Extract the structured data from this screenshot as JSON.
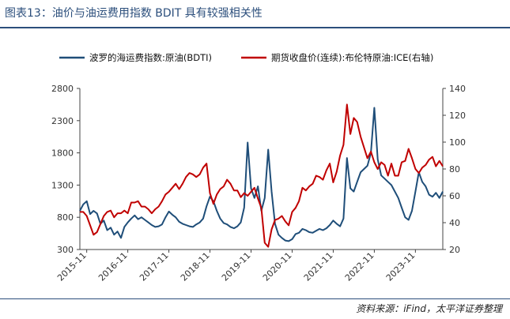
{
  "header": {
    "title": "图表13：油价与油运费用指数 BDIT 具有较强相关性"
  },
  "footer": {
    "source": "资料来源：iFind，太平洋证券整理"
  },
  "chart_data": {
    "type": "line",
    "title": "",
    "legend_position": "top",
    "grid": false,
    "x_ticks": [
      "2015-11",
      "2016-11",
      "2017-11",
      "2018-11",
      "2019-11",
      "2020-11",
      "2021-11",
      "2022-11",
      "2023-11"
    ],
    "y_left": {
      "ticks": [
        "300",
        "800",
        "1300",
        "1800",
        "2300",
        "2800"
      ],
      "range": [
        300,
        2800
      ]
    },
    "y_right": {
      "ticks": [
        "20",
        "40",
        "60",
        "80",
        "100",
        "120",
        "140"
      ],
      "range": [
        20,
        140
      ]
    },
    "series": [
      {
        "name": "波罗的海运费指数:原油(BDTI)",
        "axis": "left",
        "color": "#1f4e79",
        "points": [
          [
            "2015-09",
            900
          ],
          [
            "2015-10",
            1000
          ],
          [
            "2015-11",
            1050
          ],
          [
            "2015-12",
            850
          ],
          [
            "2016-01",
            900
          ],
          [
            "2016-02",
            860
          ],
          [
            "2016-03",
            700
          ],
          [
            "2016-04",
            750
          ],
          [
            "2016-05",
            600
          ],
          [
            "2016-06",
            640
          ],
          [
            "2016-07",
            530
          ],
          [
            "2016-08",
            580
          ],
          [
            "2016-09",
            480
          ],
          [
            "2016-10",
            650
          ],
          [
            "2016-11",
            720
          ],
          [
            "2016-12",
            780
          ],
          [
            "2017-01",
            830
          ],
          [
            "2017-02",
            770
          ],
          [
            "2017-03",
            800
          ],
          [
            "2017-04",
            760
          ],
          [
            "2017-05",
            720
          ],
          [
            "2017-06",
            680
          ],
          [
            "2017-07",
            650
          ],
          [
            "2017-08",
            660
          ],
          [
            "2017-09",
            690
          ],
          [
            "2017-10",
            800
          ],
          [
            "2017-11",
            890
          ],
          [
            "2017-12",
            840
          ],
          [
            "2018-01",
            800
          ],
          [
            "2018-02",
            730
          ],
          [
            "2018-03",
            700
          ],
          [
            "2018-04",
            680
          ],
          [
            "2018-05",
            660
          ],
          [
            "2018-06",
            650
          ],
          [
            "2018-07",
            690
          ],
          [
            "2018-08",
            720
          ],
          [
            "2018-09",
            780
          ],
          [
            "2018-10",
            970
          ],
          [
            "2018-11",
            1120
          ],
          [
            "2018-12",
            1050
          ],
          [
            "2019-01",
            900
          ],
          [
            "2019-02",
            780
          ],
          [
            "2019-03",
            710
          ],
          [
            "2019-04",
            690
          ],
          [
            "2019-05",
            650
          ],
          [
            "2019-06",
            630
          ],
          [
            "2019-07",
            660
          ],
          [
            "2019-08",
            720
          ],
          [
            "2019-09",
            950
          ],
          [
            "2019-10",
            1960
          ],
          [
            "2019-11",
            1250
          ],
          [
            "2019-12",
            1100
          ],
          [
            "2020-01",
            1280
          ],
          [
            "2020-02",
            900
          ],
          [
            "2020-03",
            1100
          ],
          [
            "2020-04",
            1850
          ],
          [
            "2020-05",
            1200
          ],
          [
            "2020-06",
            700
          ],
          [
            "2020-07",
            530
          ],
          [
            "2020-08",
            480
          ],
          [
            "2020-09",
            440
          ],
          [
            "2020-10",
            430
          ],
          [
            "2020-11",
            460
          ],
          [
            "2020-12",
            540
          ],
          [
            "2021-01",
            560
          ],
          [
            "2021-02",
            620
          ],
          [
            "2021-03",
            600
          ],
          [
            "2021-04",
            570
          ],
          [
            "2021-05",
            560
          ],
          [
            "2021-06",
            590
          ],
          [
            "2021-07",
            620
          ],
          [
            "2021-08",
            600
          ],
          [
            "2021-09",
            630
          ],
          [
            "2021-10",
            680
          ],
          [
            "2021-11",
            750
          ],
          [
            "2021-12",
            700
          ],
          [
            "2022-01",
            660
          ],
          [
            "2022-02",
            780
          ],
          [
            "2022-03",
            1720
          ],
          [
            "2022-04",
            1250
          ],
          [
            "2022-05",
            1200
          ],
          [
            "2022-06",
            1350
          ],
          [
            "2022-07",
            1500
          ],
          [
            "2022-08",
            1550
          ],
          [
            "2022-09",
            1600
          ],
          [
            "2022-10",
            1800
          ],
          [
            "2022-11",
            2500
          ],
          [
            "2022-12",
            1700
          ],
          [
            "2023-01",
            1450
          ],
          [
            "2023-02",
            1400
          ],
          [
            "2023-03",
            1350
          ],
          [
            "2023-04",
            1300
          ],
          [
            "2023-05",
            1200
          ],
          [
            "2023-06",
            1100
          ],
          [
            "2023-07",
            950
          ],
          [
            "2023-08",
            800
          ],
          [
            "2023-09",
            760
          ],
          [
            "2023-10",
            900
          ],
          [
            "2023-11",
            1200
          ],
          [
            "2023-12",
            1500
          ],
          [
            "2024-01",
            1350
          ],
          [
            "2024-02",
            1280
          ],
          [
            "2024-03",
            1150
          ],
          [
            "2024-04",
            1120
          ],
          [
            "2024-05",
            1180
          ],
          [
            "2024-06",
            1100
          ],
          [
            "2024-07",
            1200
          ]
        ]
      },
      {
        "name": "期货收盘价(连续):布伦特原油:ICE(右轴)",
        "axis": "right",
        "color": "#c00000",
        "points": [
          [
            "2015-09",
            48
          ],
          [
            "2015-10",
            48
          ],
          [
            "2015-11",
            45
          ],
          [
            "2015-12",
            38
          ],
          [
            "2016-01",
            31
          ],
          [
            "2016-02",
            33
          ],
          [
            "2016-03",
            39
          ],
          [
            "2016-04",
            45
          ],
          [
            "2016-05",
            48
          ],
          [
            "2016-06",
            49
          ],
          [
            "2016-07",
            44
          ],
          [
            "2016-08",
            47
          ],
          [
            "2016-09",
            47
          ],
          [
            "2016-10",
            49
          ],
          [
            "2016-11",
            47
          ],
          [
            "2016-12",
            55
          ],
          [
            "2017-01",
            55
          ],
          [
            "2017-02",
            56
          ],
          [
            "2017-03",
            52
          ],
          [
            "2017-04",
            52
          ],
          [
            "2017-05",
            50
          ],
          [
            "2017-06",
            47
          ],
          [
            "2017-07",
            50
          ],
          [
            "2017-08",
            52
          ],
          [
            "2017-09",
            56
          ],
          [
            "2017-10",
            61
          ],
          [
            "2017-11",
            63
          ],
          [
            "2017-12",
            66
          ],
          [
            "2018-01",
            69
          ],
          [
            "2018-02",
            65
          ],
          [
            "2018-03",
            69
          ],
          [
            "2018-04",
            74
          ],
          [
            "2018-05",
            77
          ],
          [
            "2018-06",
            76
          ],
          [
            "2018-07",
            74
          ],
          [
            "2018-08",
            76
          ],
          [
            "2018-09",
            81
          ],
          [
            "2018-10",
            84
          ],
          [
            "2018-11",
            62
          ],
          [
            "2018-12",
            54
          ],
          [
            "2019-01",
            61
          ],
          [
            "2019-02",
            65
          ],
          [
            "2019-03",
            67
          ],
          [
            "2019-04",
            72
          ],
          [
            "2019-05",
            69
          ],
          [
            "2019-06",
            64
          ],
          [
            "2019-07",
            64
          ],
          [
            "2019-08",
            59
          ],
          [
            "2019-09",
            62
          ],
          [
            "2019-10",
            60
          ],
          [
            "2019-11",
            63
          ],
          [
            "2019-12",
            66
          ],
          [
            "2020-01",
            58
          ],
          [
            "2020-02",
            51
          ],
          [
            "2020-03",
            25
          ],
          [
            "2020-04",
            22
          ],
          [
            "2020-05",
            35
          ],
          [
            "2020-06",
            42
          ],
          [
            "2020-07",
            43
          ],
          [
            "2020-08",
            45
          ],
          [
            "2020-09",
            41
          ],
          [
            "2020-10",
            38
          ],
          [
            "2020-11",
            48
          ],
          [
            "2020-12",
            51
          ],
          [
            "2021-01",
            56
          ],
          [
            "2021-02",
            66
          ],
          [
            "2021-03",
            64
          ],
          [
            "2021-04",
            67
          ],
          [
            "2021-05",
            69
          ],
          [
            "2021-06",
            75
          ],
          [
            "2021-07",
            74
          ],
          [
            "2021-08",
            72
          ],
          [
            "2021-09",
            79
          ],
          [
            "2021-10",
            84
          ],
          [
            "2021-11",
            70
          ],
          [
            "2021-12",
            78
          ],
          [
            "2022-01",
            90
          ],
          [
            "2022-02",
            98
          ],
          [
            "2022-03",
            128
          ],
          [
            "2022-04",
            106
          ],
          [
            "2022-05",
            118
          ],
          [
            "2022-06",
            115
          ],
          [
            "2022-07",
            104
          ],
          [
            "2022-08",
            96
          ],
          [
            "2022-09",
            88
          ],
          [
            "2022-10",
            93
          ],
          [
            "2022-11",
            85
          ],
          [
            "2022-12",
            80
          ],
          [
            "2023-01",
            85
          ],
          [
            "2023-02",
            83
          ],
          [
            "2023-03",
            75
          ],
          [
            "2023-04",
            84
          ],
          [
            "2023-05",
            75
          ],
          [
            "2023-06",
            75
          ],
          [
            "2023-07",
            85
          ],
          [
            "2023-08",
            86
          ],
          [
            "2023-09",
            95
          ],
          [
            "2023-10",
            88
          ],
          [
            "2023-11",
            80
          ],
          [
            "2023-12",
            77
          ],
          [
            "2024-01",
            81
          ],
          [
            "2024-02",
            83
          ],
          [
            "2024-03",
            87
          ],
          [
            "2024-04",
            89
          ],
          [
            "2024-05",
            82
          ],
          [
            "2024-06",
            86
          ],
          [
            "2024-07",
            82
          ]
        ]
      }
    ]
  }
}
